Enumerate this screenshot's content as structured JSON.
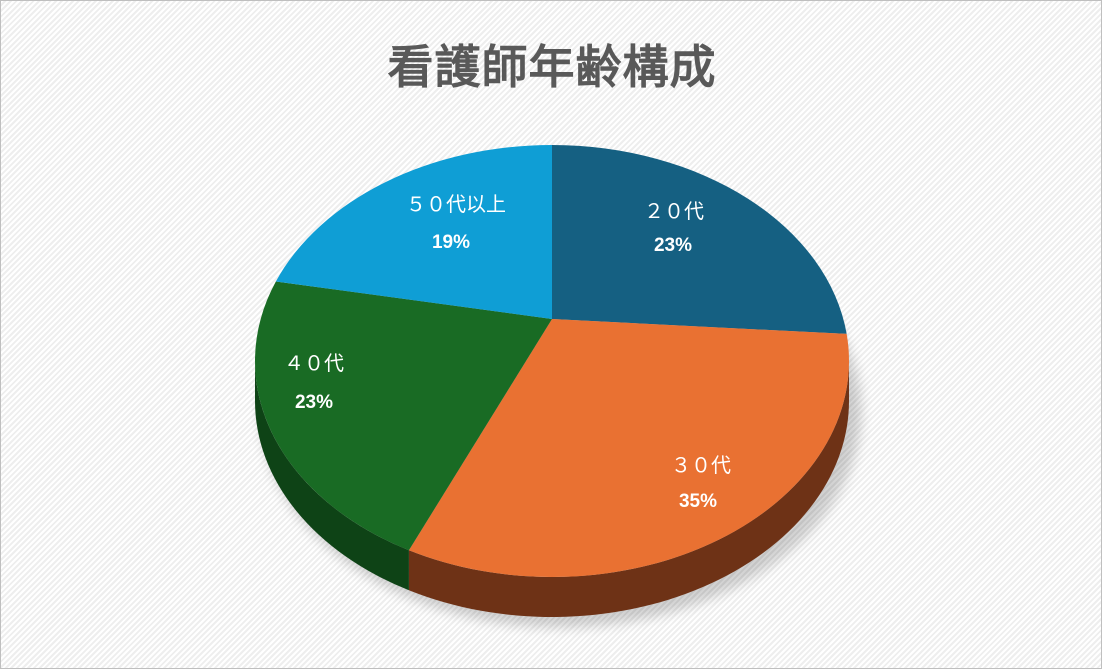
{
  "chart_data": {
    "type": "pie",
    "style": "3d",
    "title": "看護師年齢構成",
    "categories": [
      "２０代",
      "３０代",
      "４０代",
      "５０代以上"
    ],
    "values": [
      23,
      35,
      23,
      19
    ],
    "value_labels": [
      "23%",
      "35%",
      "23%",
      "19%"
    ],
    "colors": [
      "#156082",
      "#E97132",
      "#196B24",
      "#0F9ED5"
    ],
    "side_colors": [
      "#0c3a4f",
      "#6e3216",
      "#0e4316",
      "#095f80"
    ],
    "start": "top",
    "direction": "clockwise",
    "legend": "none"
  }
}
